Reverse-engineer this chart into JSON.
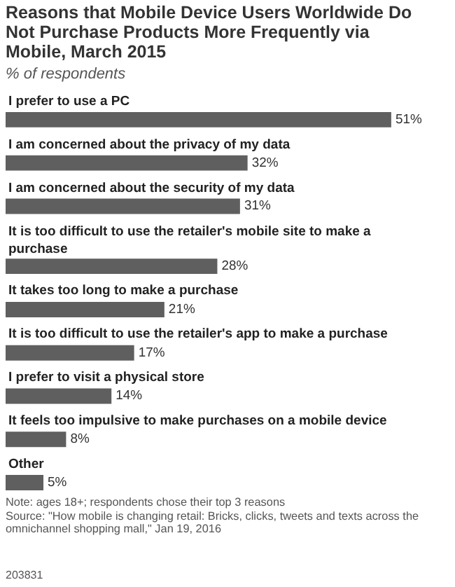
{
  "chart_data": {
    "type": "bar",
    "orientation": "horizontal",
    "title": "Reasons that Mobile Device Users Worldwide Do Not Purchase Products More Frequently via Mobile, March 2015",
    "subtitle": "% of respondents",
    "categories": [
      "I prefer to use a PC",
      "I am concerned about the privacy of my data",
      "I am concerned about the security of my data",
      "It is too difficult to use the retailer's mobile site to make a purchase",
      "It takes too long to make a purchase",
      "It is too difficult to use the retailer's app to make a purchase",
      "I prefer to visit a physical store",
      "It feels too impulsive to make purchases on a mobile device",
      "Other"
    ],
    "values": [
      51,
      32,
      31,
      28,
      21,
      17,
      14,
      8,
      5
    ],
    "value_labels": [
      "51%",
      "32%",
      "31%",
      "28%",
      "21%",
      "17%",
      "14%",
      "8%",
      "5%"
    ],
    "color": "#5f5f5f",
    "annotations": [
      "Note: ages 18+; respondents chose their top 3 reasons",
      "Source: \"How mobile is changing retail: Bricks, clicks, tweets and texts across the omnichannel shopping mall,\" Jan 19, 2016",
      "203831"
    ]
  }
}
